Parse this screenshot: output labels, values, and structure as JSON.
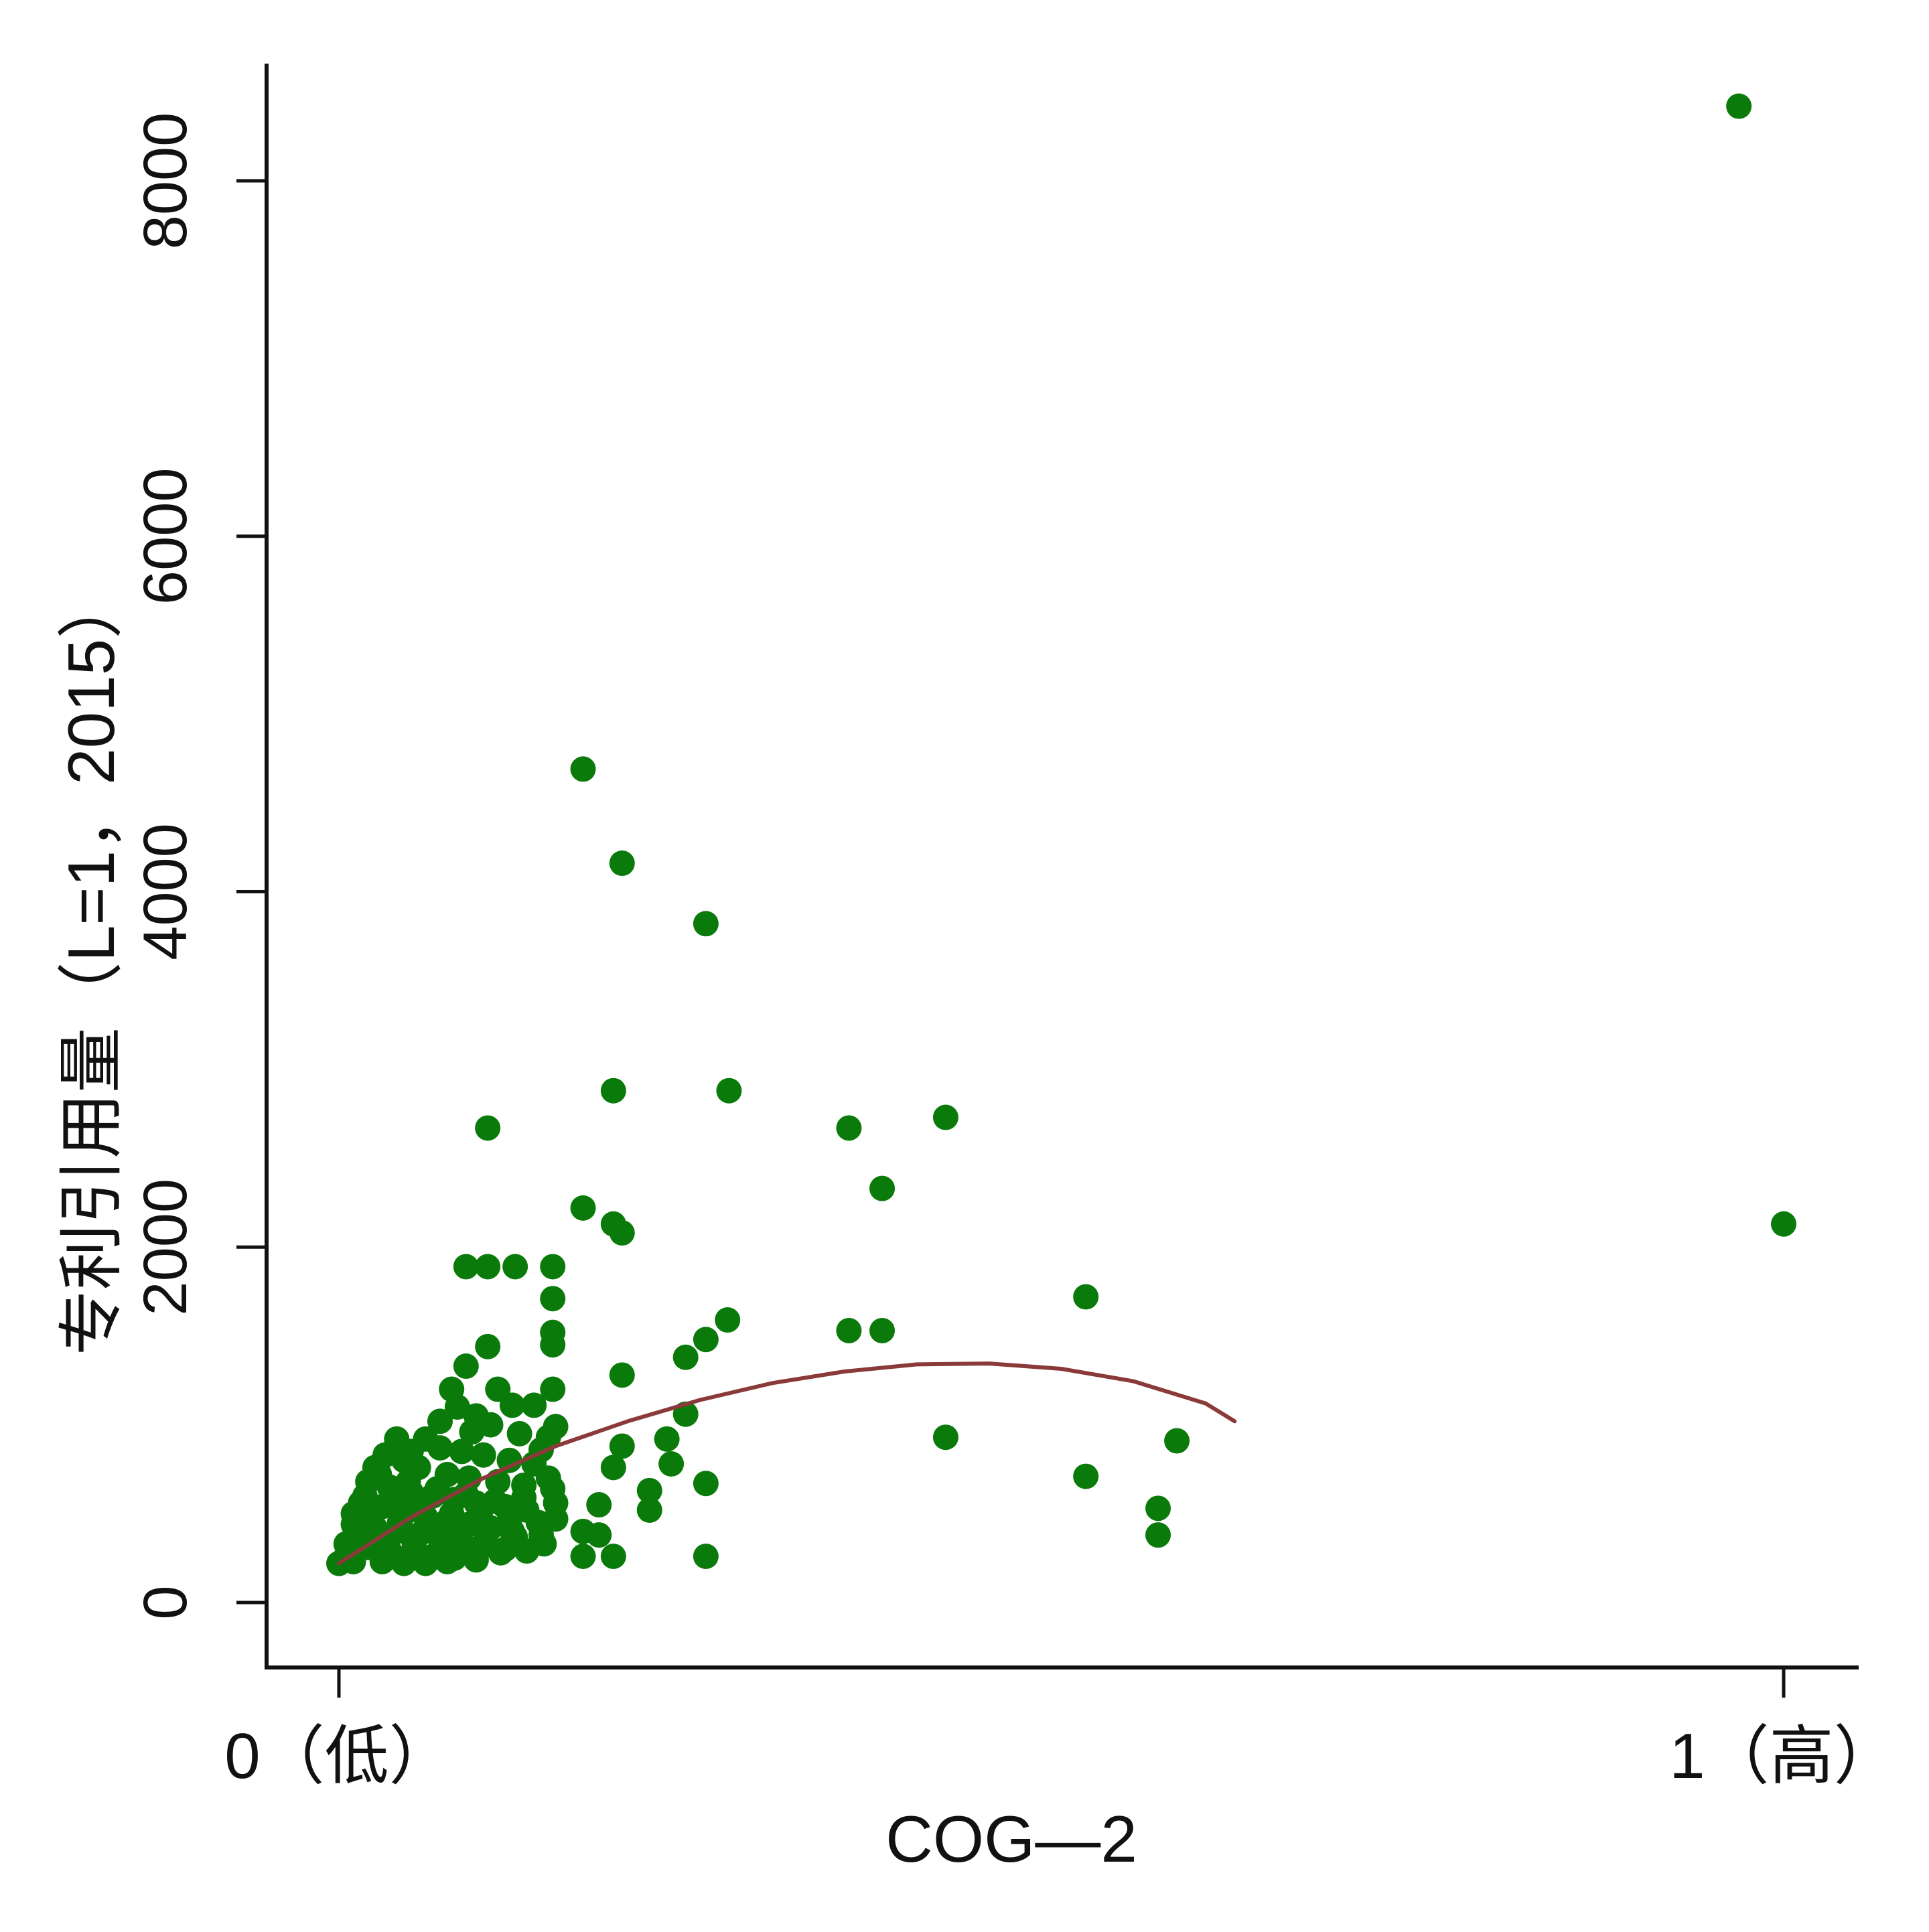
{
  "colors": {
    "points": "#0a7a0a",
    "fit_line": "#8b3a3a",
    "axis": "#111111",
    "background": "#ffffff"
  },
  "chart_data": {
    "type": "scatter",
    "title": "",
    "xlabel": "COG—2",
    "ylabel": "专利引用量（L=1，2015）",
    "xlim": [
      0,
      1
    ],
    "ylim": [
      0,
      8600
    ],
    "x_ticks": [
      {
        "value": 0,
        "label": "0（低）"
      },
      {
        "value": 1,
        "label": "1（高）"
      }
    ],
    "y_ticks": [
      {
        "value": 0,
        "label": "0"
      },
      {
        "value": 2000,
        "label": "2000"
      },
      {
        "value": 4000,
        "label": "4000"
      },
      {
        "value": 6000,
        "label": "6000"
      },
      {
        "value": 8000,
        "label": "8000"
      }
    ],
    "grid": false,
    "legend": "none",
    "fit_line": {
      "type": "quadratic",
      "x": [
        0.0,
        0.05,
        0.1,
        0.15,
        0.2,
        0.25,
        0.3,
        0.35,
        0.4,
        0.45,
        0.5,
        0.55,
        0.6,
        0.62
      ],
      "y": [
        220,
        480,
        700,
        880,
        1020,
        1140,
        1235,
        1300,
        1340,
        1345,
        1315,
        1245,
        1120,
        1020
      ]
    },
    "series": [
      {
        "points": [
          [
            0.969,
            8420
          ],
          [
            1.0,
            2130
          ],
          [
            0.169,
            4690
          ],
          [
            0.196,
            4160
          ],
          [
            0.254,
            3820
          ],
          [
            0.19,
            2880
          ],
          [
            0.27,
            2880
          ],
          [
            0.103,
            2670
          ],
          [
            0.353,
            2670
          ],
          [
            0.42,
            2730
          ],
          [
            0.376,
            2330
          ],
          [
            0.169,
            2220
          ],
          [
            0.19,
            2130
          ],
          [
            0.196,
            2080
          ],
          [
            0.088,
            1890
          ],
          [
            0.103,
            1890
          ],
          [
            0.122,
            1890
          ],
          [
            0.148,
            1890
          ],
          [
            0.148,
            1710
          ],
          [
            0.517,
            1720
          ],
          [
            0.353,
            1530
          ],
          [
            0.376,
            1530
          ],
          [
            0.269,
            1590
          ],
          [
            0.254,
            1480
          ],
          [
            0.24,
            1380
          ],
          [
            0.103,
            1440
          ],
          [
            0.148,
            1520
          ],
          [
            0.148,
            1450
          ],
          [
            0.088,
            1330
          ],
          [
            0.196,
            1280
          ],
          [
            0.148,
            1200
          ],
          [
            0.24,
            1060
          ],
          [
            0.42,
            930
          ],
          [
            0.58,
            910
          ],
          [
            0.196,
            880
          ],
          [
            0.227,
            920
          ],
          [
            0.19,
            760
          ],
          [
            0.23,
            780
          ],
          [
            0.517,
            710
          ],
          [
            0.254,
            670
          ],
          [
            0.215,
            630
          ],
          [
            0.18,
            550
          ],
          [
            0.215,
            520
          ],
          [
            0.567,
            530
          ],
          [
            0.567,
            380
          ],
          [
            0.169,
            400
          ],
          [
            0.18,
            380
          ],
          [
            0.19,
            260
          ],
          [
            0.169,
            260
          ],
          [
            0.254,
            260
          ],
          [
            0.11,
            1200
          ],
          [
            0.12,
            1110
          ],
          [
            0.135,
            1110
          ],
          [
            0.078,
            1200
          ],
          [
            0.095,
            1050
          ],
          [
            0.105,
            1000
          ],
          [
            0.125,
            950
          ],
          [
            0.145,
            930
          ],
          [
            0.06,
            920
          ],
          [
            0.04,
            920
          ],
          [
            0.07,
            870
          ],
          [
            0.085,
            850
          ],
          [
            0.1,
            830
          ],
          [
            0.118,
            800
          ],
          [
            0.135,
            780
          ],
          [
            0.025,
            760
          ],
          [
            0.045,
            800
          ],
          [
            0.055,
            760
          ],
          [
            0.075,
            720
          ],
          [
            0.09,
            700
          ],
          [
            0.11,
            680
          ],
          [
            0.128,
            660
          ],
          [
            0.148,
            640
          ],
          [
            0.02,
            680
          ],
          [
            0.035,
            650
          ],
          [
            0.05,
            620
          ],
          [
            0.065,
            600
          ],
          [
            0.08,
            580
          ],
          [
            0.095,
            560
          ],
          [
            0.115,
            540
          ],
          [
            0.13,
            520
          ],
          [
            0.015,
            560
          ],
          [
            0.03,
            540
          ],
          [
            0.045,
            500
          ],
          [
            0.06,
            480
          ],
          [
            0.075,
            460
          ],
          [
            0.09,
            440
          ],
          [
            0.105,
            420
          ],
          [
            0.12,
            400
          ],
          [
            0.14,
            380
          ],
          [
            0.01,
            440
          ],
          [
            0.025,
            420
          ],
          [
            0.04,
            400
          ],
          [
            0.055,
            380
          ],
          [
            0.07,
            360
          ],
          [
            0.085,
            340
          ],
          [
            0.1,
            320
          ],
          [
            0.115,
            300
          ],
          [
            0.13,
            290
          ],
          [
            0.005,
            330
          ],
          [
            0.02,
            310
          ],
          [
            0.035,
            290
          ],
          [
            0.05,
            270
          ],
          [
            0.065,
            260
          ],
          [
            0.08,
            250
          ],
          [
            0.095,
            240
          ],
          [
            0.0,
            220
          ],
          [
            0.01,
            230
          ],
          [
            0.03,
            230
          ],
          [
            0.045,
            220
          ],
          [
            0.06,
            220
          ],
          [
            0.075,
            230
          ],
          [
            0.018,
            600
          ],
          [
            0.028,
            720
          ],
          [
            0.038,
            580
          ],
          [
            0.048,
            680
          ],
          [
            0.058,
            540
          ],
          [
            0.068,
            640
          ],
          [
            0.078,
            500
          ],
          [
            0.088,
            610
          ],
          [
            0.098,
            480
          ],
          [
            0.108,
            570
          ],
          [
            0.118,
            460
          ],
          [
            0.128,
            590
          ],
          [
            0.138,
            450
          ],
          [
            0.012,
            380
          ],
          [
            0.022,
            470
          ],
          [
            0.032,
            360
          ],
          [
            0.042,
            450
          ],
          [
            0.052,
            340
          ],
          [
            0.062,
            430
          ],
          [
            0.072,
            320
          ],
          [
            0.082,
            410
          ],
          [
            0.092,
            300
          ],
          [
            0.102,
            390
          ],
          [
            0.112,
            280
          ],
          [
            0.122,
            370
          ],
          [
            0.142,
            330
          ],
          [
            0.15,
            560
          ],
          [
            0.15,
            470
          ],
          [
            0.145,
            700
          ],
          [
            0.14,
            860
          ],
          [
            0.092,
            960
          ],
          [
            0.082,
            1100
          ],
          [
            0.07,
            1020
          ],
          [
            0.05,
            850
          ],
          [
            0.032,
            830
          ],
          [
            0.15,
            990
          ],
          [
            0.01,
            500
          ],
          [
            0.005,
            260
          ]
        ]
      }
    ]
  }
}
